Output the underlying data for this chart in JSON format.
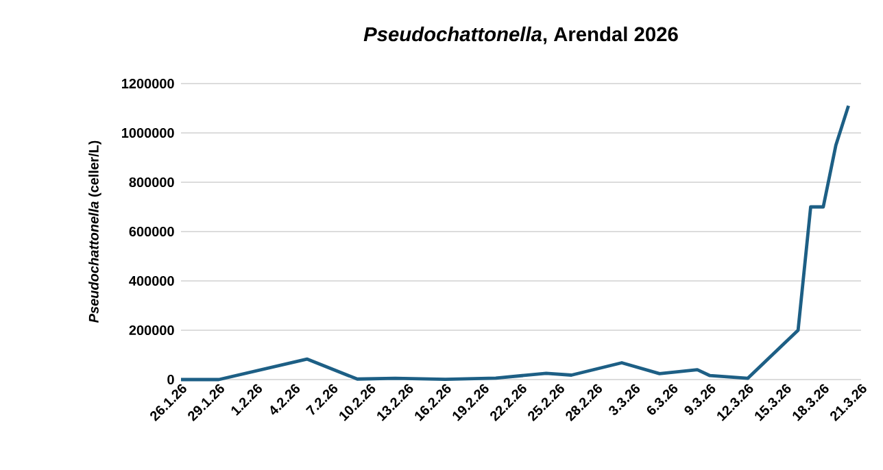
{
  "chart_data": {
    "type": "line",
    "title": "*Pseudochattonella*, Arendal 2026",
    "ylabel": "*Pseudochattonella* (celler/L)",
    "x": [
      "2026-01-26",
      "2026-01-29",
      "2026-02-05",
      "2026-02-09",
      "2026-02-12",
      "2026-02-16",
      "2026-02-20",
      "2026-02-24",
      "2026-02-26",
      "2026-03-02",
      "2026-03-05",
      "2026-03-08",
      "2026-03-09",
      "2026-03-12",
      "2026-03-16",
      "2026-03-17",
      "2026-03-18",
      "2026-03-19",
      "2026-03-20"
    ],
    "values": [
      0,
      0,
      83000,
      2000,
      5000,
      1000,
      6000,
      25000,
      18000,
      68000,
      24000,
      40000,
      16000,
      5000,
      200000,
      700000,
      700000,
      950000,
      1110000
    ],
    "color": "#1d5f85",
    "line_style": "solid",
    "marker": "none",
    "grid": "y",
    "xlim": [
      "2026-01-26",
      "2026-03-21"
    ],
    "xticks": [
      {
        "value": "2026-01-26",
        "label": "26.1.26"
      },
      {
        "value": "2026-01-29",
        "label": "29.1.26"
      },
      {
        "value": "2026-02-01",
        "label": "1.2.26"
      },
      {
        "value": "2026-02-04",
        "label": "4.2.26"
      },
      {
        "value": "2026-02-07",
        "label": "7.2.26"
      },
      {
        "value": "2026-02-10",
        "label": "10.2.26"
      },
      {
        "value": "2026-02-13",
        "label": "13.2.26"
      },
      {
        "value": "2026-02-16",
        "label": "16.2.26"
      },
      {
        "value": "2026-02-19",
        "label": "19.2.26"
      },
      {
        "value": "2026-02-22",
        "label": "22.2.26"
      },
      {
        "value": "2026-02-25",
        "label": "25.2.26"
      },
      {
        "value": "2026-02-28",
        "label": "28.2.26"
      },
      {
        "value": "2026-03-03",
        "label": "3.3.26"
      },
      {
        "value": "2026-03-06",
        "label": "6.3.26"
      },
      {
        "value": "2026-03-09",
        "label": "9.3.26"
      },
      {
        "value": "2026-03-12",
        "label": "12.3.26"
      },
      {
        "value": "2026-03-15",
        "label": "15.3.26"
      },
      {
        "value": "2026-03-18",
        "label": "18.3.26"
      },
      {
        "value": "2026-03-21",
        "label": "21.3.26"
      }
    ],
    "ylim": [
      0,
      1200000
    ],
    "yticks": [
      0,
      200000,
      400000,
      600000,
      800000,
      1000000,
      1200000
    ]
  }
}
